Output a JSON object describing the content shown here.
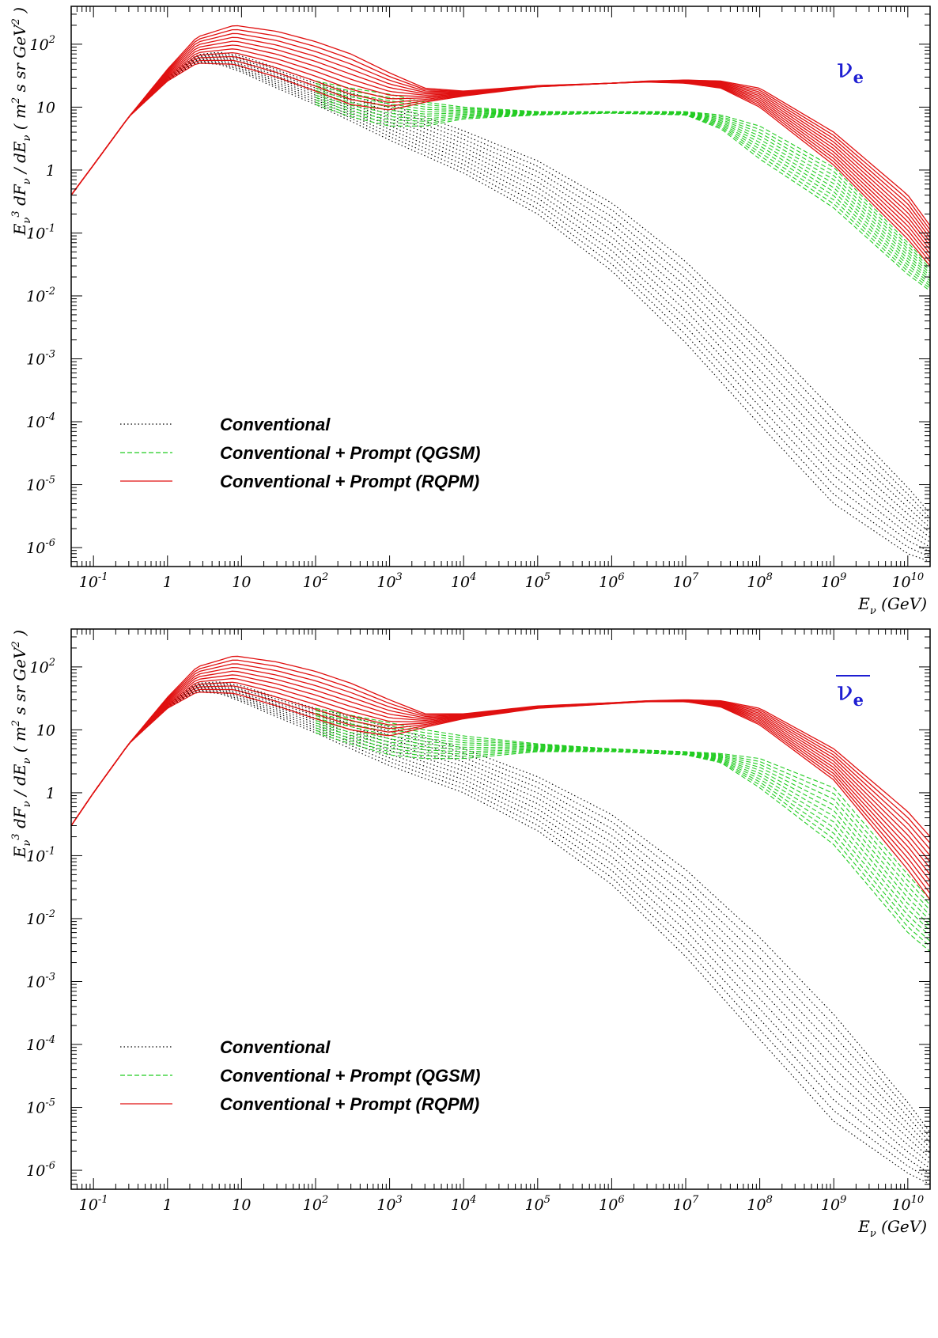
{
  "chart_data": [
    {
      "type": "line",
      "x_scale": "log",
      "y_scale": "log",
      "xlim": [
        0.05,
        20000000000
      ],
      "ylim": [
        5e-07,
        400
      ],
      "xlabel": {
        "main": "E",
        "sub": "ν",
        "rest": " (GeV)"
      },
      "ylabel": {
        "main": "E",
        "sub": "ν",
        "sup": "3",
        "mid": " dF",
        "sub2": "ν",
        "mid2": " / dE",
        "sub3": "ν",
        "rest": " ( m",
        "sup2": "2",
        "rest2": " s sr GeV",
        "sup3": "2",
        "rest3": " )"
      },
      "x_ticks": [
        {
          "value": 0.1,
          "base": "10",
          "exp": "-1"
        },
        {
          "value": 1,
          "base": "1",
          "exp": ""
        },
        {
          "value": 10,
          "base": "10",
          "exp": ""
        },
        {
          "value": 100,
          "base": "10",
          "exp": "2"
        },
        {
          "value": 1000,
          "base": "10",
          "exp": "3"
        },
        {
          "value": 10000,
          "base": "10",
          "exp": "4"
        },
        {
          "value": 100000,
          "base": "10",
          "exp": "5"
        },
        {
          "value": 1000000,
          "base": "10",
          "exp": "6"
        },
        {
          "value": 10000000,
          "base": "10",
          "exp": "7"
        },
        {
          "value": 100000000,
          "base": "10",
          "exp": "8"
        },
        {
          "value": 1000000000,
          "base": "10",
          "exp": "9"
        },
        {
          "value": 10000000000,
          "base": "10",
          "exp": "10"
        }
      ],
      "y_ticks": [
        {
          "value": 100,
          "base": "10",
          "exp": "2"
        },
        {
          "value": 10,
          "base": "10",
          "exp": ""
        },
        {
          "value": 1,
          "base": "1",
          "exp": ""
        },
        {
          "value": 0.1,
          "base": "10",
          "exp": "-1"
        },
        {
          "value": 0.01,
          "base": "10",
          "exp": "-2"
        },
        {
          "value": 0.001,
          "base": "10",
          "exp": "-3"
        },
        {
          "value": 0.0001,
          "base": "10",
          "exp": "-4"
        },
        {
          "value": 1e-05,
          "base": "10",
          "exp": "-5"
        },
        {
          "value": 1e-06,
          "base": "10",
          "exp": "-6"
        }
      ],
      "annotation": {
        "symbol": "ν",
        "sub": "e",
        "overline": false
      },
      "legend": {
        "position": "lower-left",
        "entries": [
          {
            "label": "Conventional",
            "color": "#000000",
            "dash": "dotted"
          },
          {
            "label": "Conventional + Prompt (QGSM)",
            "color": "#22cc22",
            "dash": "dashed"
          },
          {
            "label": "Conventional + Prompt (RQPM)",
            "color": "#e01010",
            "dash": "solid"
          }
        ]
      },
      "series": [
        {
          "label": "Conventional",
          "color": "#000000",
          "dash": "dotted",
          "curves_count": 11,
          "x": [
            0.05,
            0.1,
            0.3,
            1,
            2.5,
            5,
            10,
            30,
            100,
            300,
            1000,
            10000,
            100000,
            1000000,
            10000000,
            100000000,
            1000000000,
            10000000000,
            20000000000
          ],
          "y_high": [
            0.4,
            1.2,
            7,
            30,
            68,
            75,
            65,
            42,
            26,
            17,
            11,
            4.2,
            1.4,
            0.3,
            0.035,
            0.0025,
            0.00015,
            9e-06,
            3.5e-06
          ],
          "y_low": [
            0.4,
            1.2,
            7,
            26,
            50,
            48,
            36,
            20,
            11,
            6,
            3,
            0.9,
            0.2,
            0.025,
            0.0018,
            9e-05,
            5e-06,
            8e-07,
            6e-07
          ]
        },
        {
          "label": "Conventional + Prompt (QGSM)",
          "color": "#22cc22",
          "dash": "dashed",
          "curves_count": 11,
          "x": [
            100,
            300,
            1000,
            3000,
            10000,
            100000,
            1000000,
            10000000,
            30000000,
            100000000,
            1000000000,
            10000000000,
            20000000000
          ],
          "y_high": [
            26,
            20,
            16,
            12,
            10,
            8.5,
            8.5,
            8.5,
            7.5,
            5,
            1.1,
            0.07,
            0.03
          ],
          "y_low": [
            11,
            7,
            5,
            5,
            6.5,
            7.5,
            8,
            7.5,
            4.5,
            1.5,
            0.25,
            0.022,
            0.012
          ]
        },
        {
          "label": "Conventional + Prompt (RQPM)",
          "color": "#e01010",
          "dash": "solid",
          "curves_count": 11,
          "x": [
            0.05,
            0.1,
            0.3,
            1,
            2.5,
            8,
            30,
            100,
            300,
            1000,
            3000,
            10000,
            100000,
            1000000,
            3000000,
            10000000,
            30000000,
            100000000,
            1000000000,
            10000000000,
            20000000000
          ],
          "y_high": [
            0.4,
            1.2,
            7,
            40,
            130,
            200,
            160,
            110,
            70,
            35,
            20,
            18,
            22,
            24,
            26,
            27,
            26,
            20,
            4,
            0.4,
            0.13
          ],
          "y_low": [
            0.4,
            1.2,
            7,
            26,
            50,
            48,
            30,
            18,
            11,
            9,
            12,
            15,
            21,
            24,
            25,
            24,
            20,
            10,
            1.2,
            0.08,
            0.03
          ]
        }
      ]
    },
    {
      "type": "line",
      "x_scale": "log",
      "y_scale": "log",
      "xlim": [
        0.05,
        20000000000
      ],
      "ylim": [
        5e-07,
        400
      ],
      "xlabel": {
        "main": "E",
        "sub": "ν",
        "rest": " (GeV)"
      },
      "ylabel": {
        "main": "E",
        "sub": "ν",
        "sup": "3",
        "mid": " dF",
        "sub2": "ν",
        "mid2": " / dE",
        "sub3": "ν",
        "rest": " ( m",
        "sup2": "2",
        "rest2": " s sr GeV",
        "sup3": "2",
        "rest3": " )"
      },
      "x_ticks": [
        {
          "value": 0.1,
          "base": "10",
          "exp": "-1"
        },
        {
          "value": 1,
          "base": "1",
          "exp": ""
        },
        {
          "value": 10,
          "base": "10",
          "exp": ""
        },
        {
          "value": 100,
          "base": "10",
          "exp": "2"
        },
        {
          "value": 1000,
          "base": "10",
          "exp": "3"
        },
        {
          "value": 10000,
          "base": "10",
          "exp": "4"
        },
        {
          "value": 100000,
          "base": "10",
          "exp": "5"
        },
        {
          "value": 1000000,
          "base": "10",
          "exp": "6"
        },
        {
          "value": 10000000,
          "base": "10",
          "exp": "7"
        },
        {
          "value": 100000000,
          "base": "10",
          "exp": "8"
        },
        {
          "value": 1000000000,
          "base": "10",
          "exp": "9"
        },
        {
          "value": 10000000000,
          "base": "10",
          "exp": "10"
        }
      ],
      "y_ticks": [
        {
          "value": 100,
          "base": "10",
          "exp": "2"
        },
        {
          "value": 10,
          "base": "10",
          "exp": ""
        },
        {
          "value": 1,
          "base": "1",
          "exp": ""
        },
        {
          "value": 0.1,
          "base": "10",
          "exp": "-1"
        },
        {
          "value": 0.01,
          "base": "10",
          "exp": "-2"
        },
        {
          "value": 0.001,
          "base": "10",
          "exp": "-3"
        },
        {
          "value": 0.0001,
          "base": "10",
          "exp": "-4"
        },
        {
          "value": 1e-05,
          "base": "10",
          "exp": "-5"
        },
        {
          "value": 1e-06,
          "base": "10",
          "exp": "-6"
        }
      ],
      "annotation": {
        "symbol": "ν",
        "sub": "e",
        "overline": true
      },
      "legend": {
        "position": "lower-left",
        "entries": [
          {
            "label": "Conventional",
            "color": "#000000",
            "dash": "dotted"
          },
          {
            "label": "Conventional + Prompt (QGSM)",
            "color": "#22cc22",
            "dash": "dashed"
          },
          {
            "label": "Conventional + Prompt (RQPM)",
            "color": "#e01010",
            "dash": "solid"
          }
        ]
      },
      "series": [
        {
          "label": "Conventional",
          "color": "#000000",
          "dash": "dotted",
          "curves_count": 11,
          "x": [
            0.05,
            0.1,
            0.3,
            1,
            2.5,
            5,
            10,
            30,
            100,
            300,
            1000,
            10000,
            100000,
            1000000,
            10000000,
            100000000,
            1000000000,
            10000000000,
            20000000000
          ],
          "y_high": [
            0.3,
            1,
            6,
            25,
            55,
            58,
            50,
            33,
            22,
            16,
            11,
            5,
            1.8,
            0.45,
            0.06,
            0.005,
            0.0003,
            1.2e-05,
            4e-06
          ],
          "y_low": [
            0.3,
            1,
            6,
            22,
            40,
            38,
            28,
            16,
            9,
            5,
            2.7,
            1,
            0.25,
            0.035,
            0.0025,
            0.00012,
            6e-06,
            9e-07,
            6e-07
          ]
        },
        {
          "label": "Conventional + Prompt (QGSM)",
          "color": "#22cc22",
          "dash": "dashed",
          "curves_count": 11,
          "x": [
            100,
            300,
            1000,
            3000,
            10000,
            100000,
            1000000,
            10000000,
            30000000,
            100000000,
            1000000000,
            10000000000,
            20000000000
          ],
          "y_high": [
            22,
            17,
            13,
            10,
            8,
            6,
            5,
            4.5,
            4.2,
            3.5,
            1.2,
            0.05,
            0.02
          ],
          "y_low": [
            9,
            6,
            4,
            3.5,
            3.5,
            4.5,
            4.5,
            4,
            3,
            1.2,
            0.15,
            0.006,
            0.003
          ]
        },
        {
          "label": "Conventional + Prompt (RQPM)",
          "color": "#e01010",
          "dash": "solid",
          "curves_count": 11,
          "x": [
            0.05,
            0.1,
            0.3,
            1,
            2.5,
            8,
            30,
            100,
            300,
            1000,
            3000,
            10000,
            100000,
            1000000,
            3000000,
            10000000,
            30000000,
            100000000,
            1000000000,
            10000000000,
            20000000000
          ],
          "y_high": [
            0.3,
            1,
            6,
            33,
            100,
            150,
            120,
            85,
            55,
            30,
            18,
            18,
            24,
            27,
            29,
            30,
            29,
            22,
            5,
            0.5,
            0.2
          ],
          "y_low": [
            0.3,
            1,
            6,
            22,
            40,
            38,
            24,
            15,
            10,
            8,
            11,
            15,
            22,
            26,
            28,
            28,
            23,
            12,
            1.6,
            0.06,
            0.02
          ]
        }
      ]
    }
  ]
}
